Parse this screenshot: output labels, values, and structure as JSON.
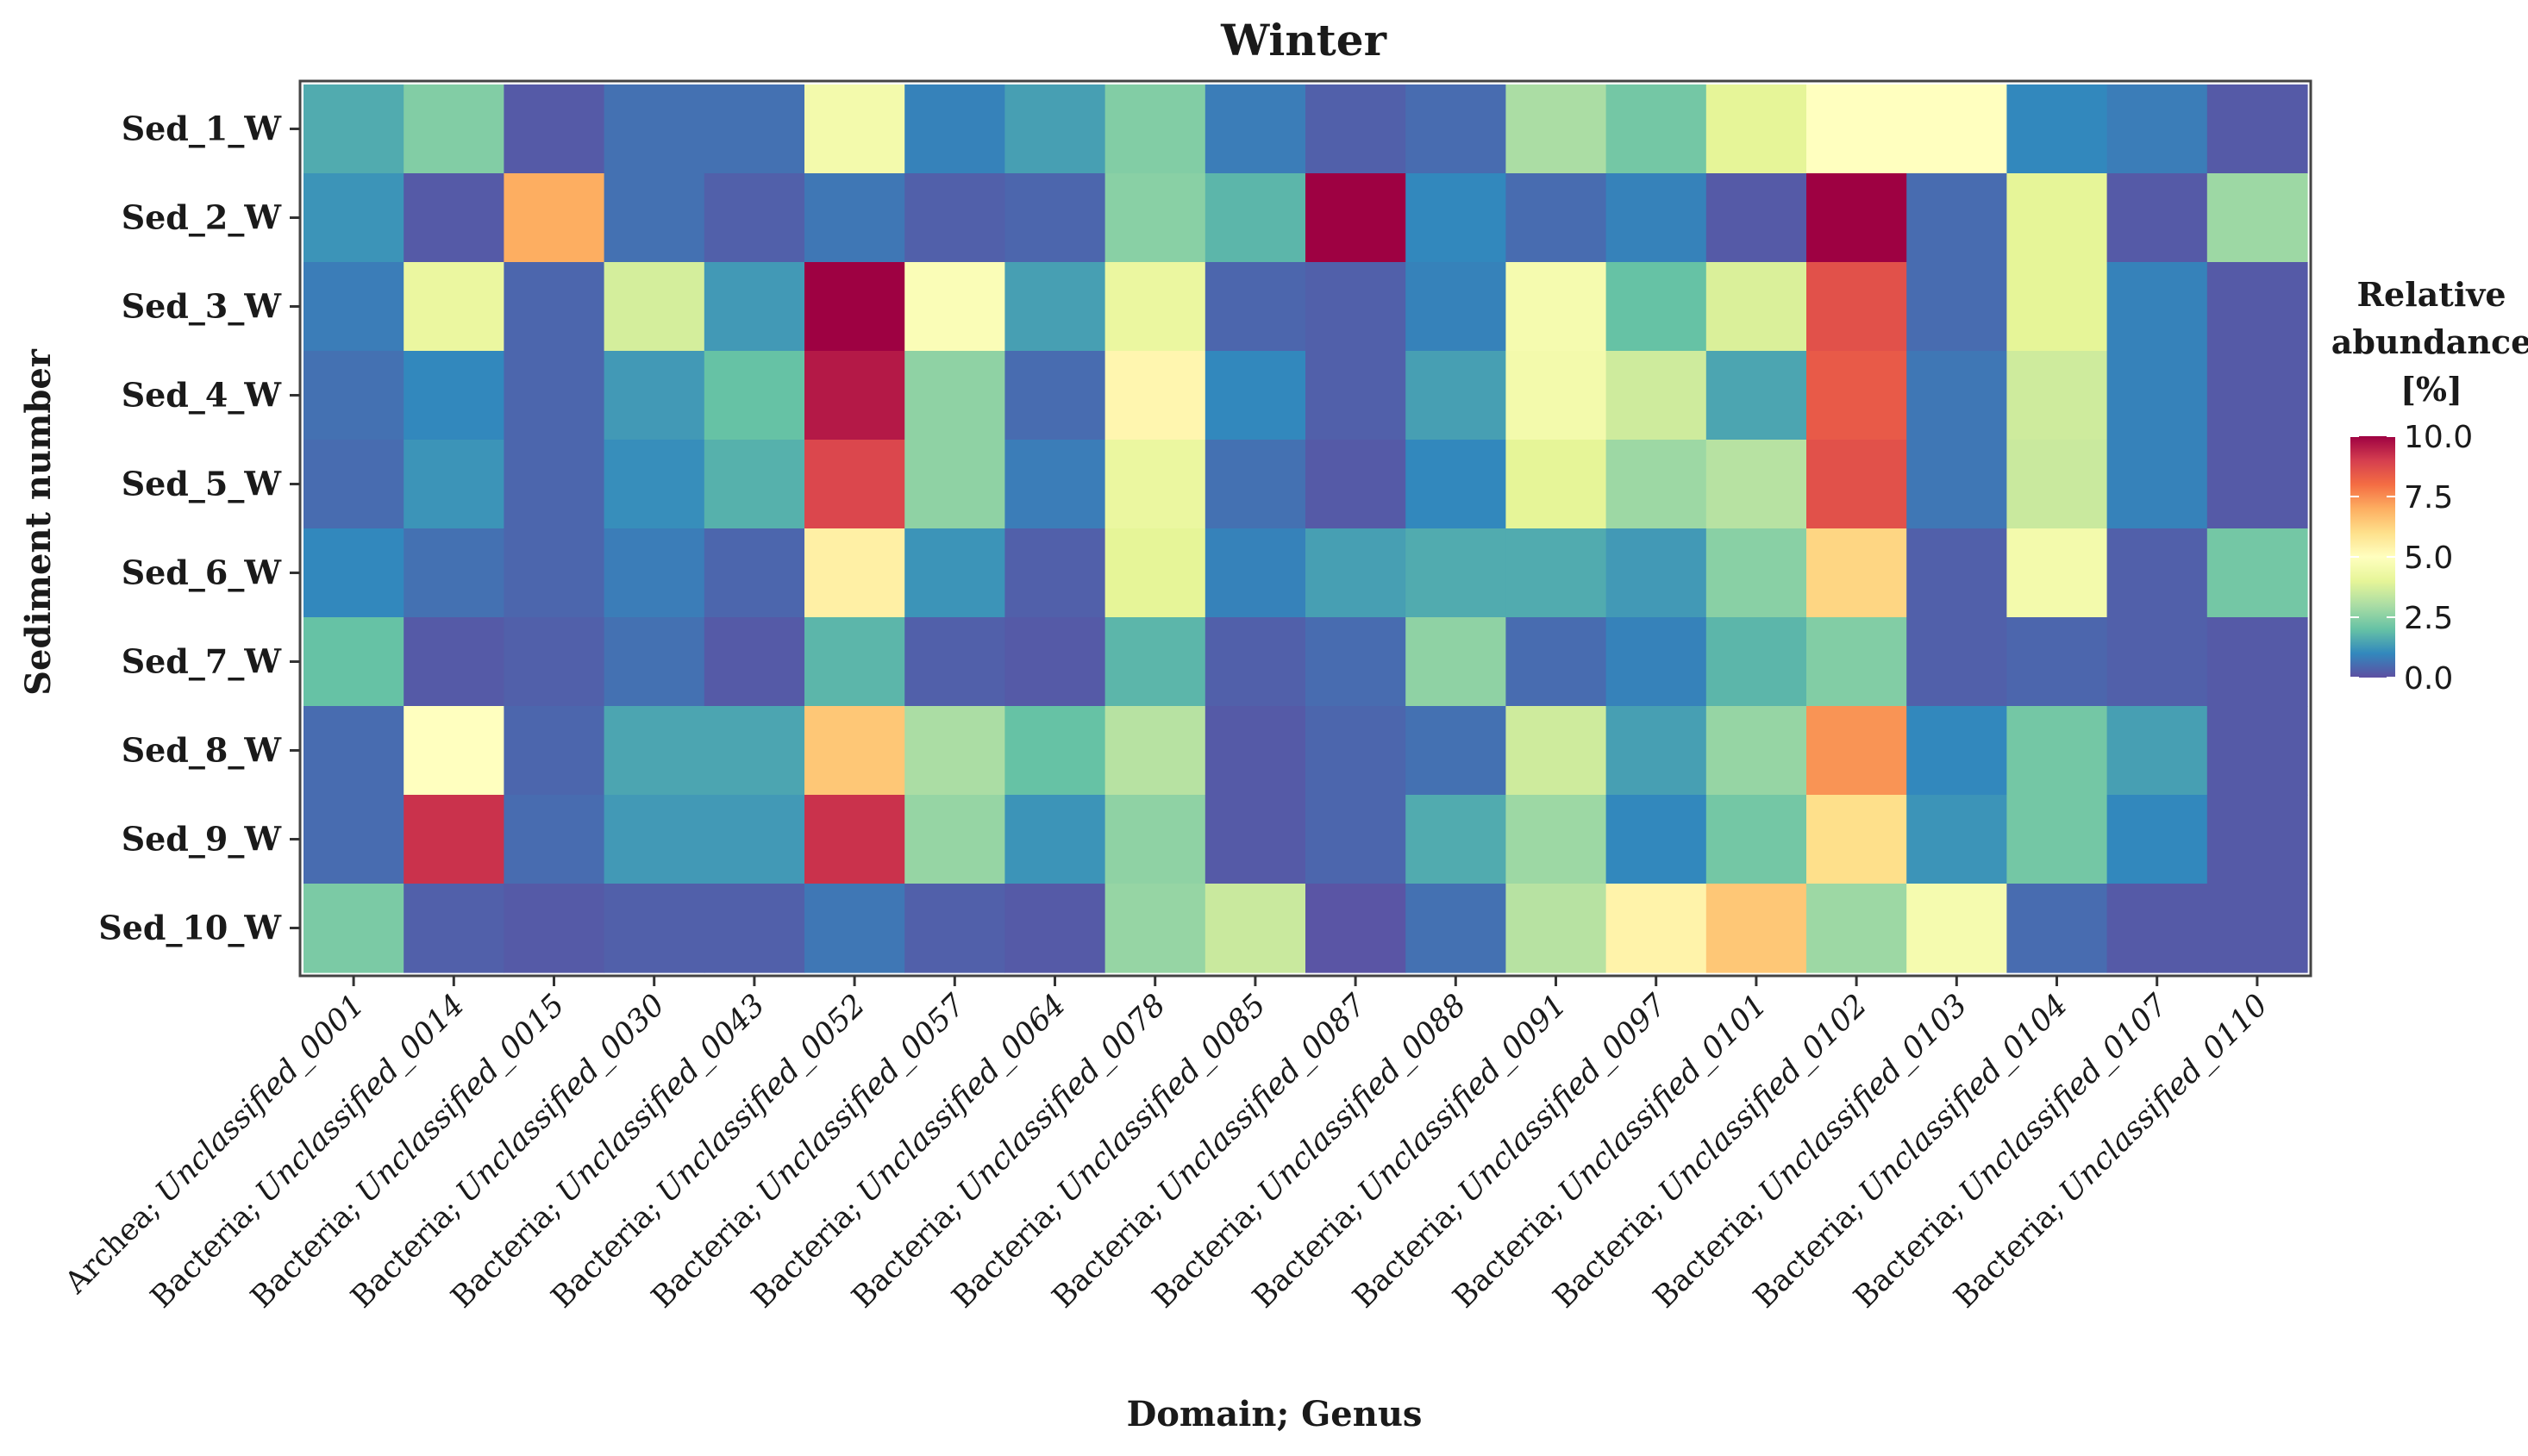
{
  "chart_data": {
    "type": "heatmap",
    "title": "Winter",
    "xlabel": "Domain; Genus",
    "ylabel": "Sediment number",
    "x_categories": [
      {
        "domain": "Archea;",
        "genus": "Unclassified_0001"
      },
      {
        "domain": "Bacteria;",
        "genus": "Unclassified_0014"
      },
      {
        "domain": "Bacteria;",
        "genus": "Unclassified_0015"
      },
      {
        "domain": "Bacteria;",
        "genus": "Unclassified_0030"
      },
      {
        "domain": "Bacteria;",
        "genus": "Unclassified_0043"
      },
      {
        "domain": "Bacteria;",
        "genus": "Unclassified_0052"
      },
      {
        "domain": "Bacteria;",
        "genus": "Unclassified_0057"
      },
      {
        "domain": "Bacteria;",
        "genus": "Unclassified_0064"
      },
      {
        "domain": "Bacteria;",
        "genus": "Unclassified_0078"
      },
      {
        "domain": "Bacteria;",
        "genus": "Unclassified_0085"
      },
      {
        "domain": "Bacteria;",
        "genus": "Unclassified_0087"
      },
      {
        "domain": "Bacteria;",
        "genus": "Unclassified_0088"
      },
      {
        "domain": "Bacteria;",
        "genus": "Unclassified_0091"
      },
      {
        "domain": "Bacteria;",
        "genus": "Unclassified_0097"
      },
      {
        "domain": "Bacteria;",
        "genus": "Unclassified_0101"
      },
      {
        "domain": "Bacteria;",
        "genus": "Unclassified_0102"
      },
      {
        "domain": "Bacteria;",
        "genus": "Unclassified_0103"
      },
      {
        "domain": "Bacteria;",
        "genus": "Unclassified_0104"
      },
      {
        "domain": "Bacteria;",
        "genus": "Unclassified_0107"
      },
      {
        "domain": "Bacteria;",
        "genus": "Unclassified_0110"
      }
    ],
    "y_categories": [
      "Sed_1_W",
      "Sed_2_W",
      "Sed_3_W",
      "Sed_4_W",
      "Sed_5_W",
      "Sed_6_W",
      "Sed_7_W",
      "Sed_8_W",
      "Sed_9_W",
      "Sed_10_W"
    ],
    "values": [
      [
        1.6,
        2.4,
        0.2,
        0.6,
        0.6,
        4.5,
        0.9,
        1.4,
        2.4,
        0.8,
        0.3,
        0.5,
        3.0,
        2.2,
        4.0,
        5.0,
        5.0,
        1.0,
        0.8,
        0.2
      ],
      [
        1.2,
        0.2,
        7.0,
        0.6,
        0.3,
        0.7,
        0.3,
        0.4,
        2.5,
        1.8,
        10.0,
        1.0,
        0.5,
        0.9,
        0.2,
        10.0,
        0.5,
        4.0,
        0.2,
        2.8
      ],
      [
        0.8,
        4.2,
        0.4,
        3.7,
        1.3,
        10.0,
        4.8,
        1.4,
        4.2,
        0.4,
        0.3,
        0.9,
        4.6,
        2.0,
        3.8,
        8.6,
        0.5,
        4.0,
        0.9,
        0.2
      ],
      [
        0.6,
        1.0,
        0.4,
        1.3,
        2.0,
        9.6,
        2.6,
        0.5,
        5.3,
        1.0,
        0.3,
        1.4,
        4.5,
        3.6,
        1.5,
        8.4,
        0.7,
        3.6,
        0.9,
        0.2
      ],
      [
        0.5,
        1.2,
        0.4,
        1.1,
        1.7,
        8.8,
        2.6,
        0.8,
        4.2,
        0.6,
        0.2,
        1.0,
        4.0,
        2.8,
        3.2,
        8.6,
        0.7,
        3.5,
        0.9,
        0.2
      ],
      [
        1.0,
        0.6,
        0.4,
        0.8,
        0.4,
        5.5,
        1.2,
        0.3,
        4.0,
        0.9,
        1.4,
        1.6,
        1.6,
        1.3,
        2.5,
        6.2,
        0.3,
        4.5,
        0.3,
        2.2
      ],
      [
        2.0,
        0.2,
        0.3,
        0.6,
        0.2,
        1.8,
        0.3,
        0.2,
        1.8,
        0.3,
        0.5,
        2.6,
        0.5,
        0.9,
        1.8,
        2.4,
        0.3,
        0.4,
        0.3,
        0.2
      ],
      [
        0.5,
        5.0,
        0.4,
        1.5,
        1.5,
        6.5,
        3.0,
        2.0,
        3.2,
        0.2,
        0.4,
        0.6,
        3.6,
        1.4,
        2.7,
        7.4,
        1.0,
        2.2,
        1.4,
        0.2
      ],
      [
        0.5,
        9.2,
        0.5,
        1.3,
        1.3,
        9.2,
        2.7,
        1.2,
        2.6,
        0.2,
        0.4,
        1.6,
        2.8,
        1.0,
        2.2,
        6.0,
        1.2,
        2.2,
        1.0,
        0.2
      ],
      [
        2.3,
        0.3,
        0.2,
        0.3,
        0.3,
        0.7,
        0.3,
        0.2,
        2.7,
        3.5,
        0.1,
        0.6,
        3.2,
        5.4,
        6.5,
        2.8,
        4.6,
        0.5,
        0.2,
        0.2
      ]
    ],
    "color_scale": {
      "min": 0,
      "max": 10,
      "palette": "Spectral",
      "stops": [
        "#5e4fa2",
        "#3288bd",
        "#66c2a5",
        "#abdda4",
        "#e6f598",
        "#ffffbf",
        "#fee08b",
        "#fdae61",
        "#f46d43",
        "#d53e4f",
        "#9e0142"
      ]
    },
    "legend": {
      "title_lines": [
        "Relative",
        "abundance",
        "[%]"
      ],
      "ticks": [
        "10.0",
        "7.5",
        "5.0",
        "2.5",
        "0.0"
      ],
      "placement": "right"
    }
  }
}
